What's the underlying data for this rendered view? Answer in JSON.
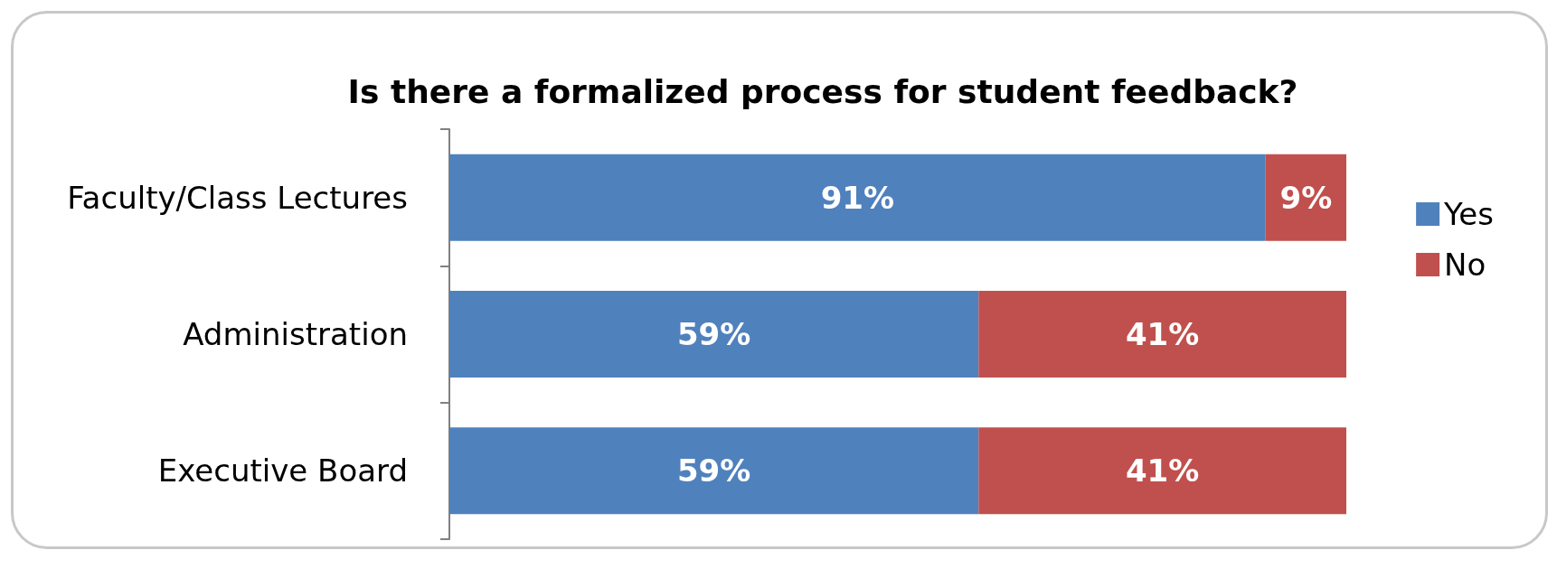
{
  "chart_data": {
    "type": "bar",
    "orientation": "horizontal",
    "stacked": true,
    "title": "Is there a formalized process for student feedback?",
    "categories": [
      "Faculty/Class Lectures",
      "Administration",
      "Executive Board"
    ],
    "series": [
      {
        "name": "Yes",
        "color": "#4f81bd",
        "values": [
          91,
          59,
          59
        ],
        "value_labels": [
          "91%",
          "59%",
          "59%"
        ]
      },
      {
        "name": "No",
        "color": "#c0504d",
        "values": [
          9,
          41,
          41
        ],
        "value_labels": [
          "9%",
          "41%",
          "41%"
        ]
      }
    ],
    "legend": "right",
    "grid": false
  }
}
